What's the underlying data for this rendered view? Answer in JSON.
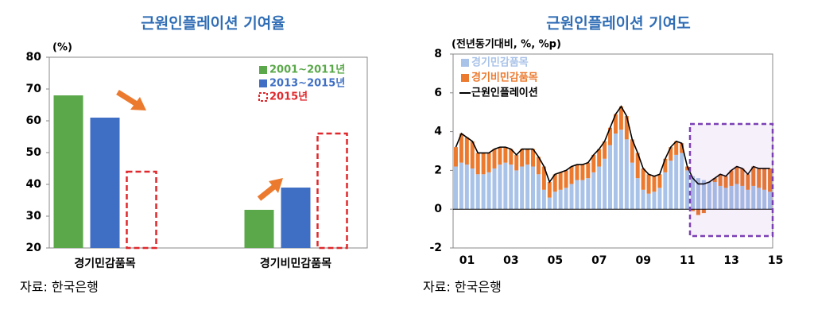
{
  "chart_data": [
    {
      "type": "bar",
      "title": "근원인플레이션 기여율",
      "y_label": "(%)",
      "categories": [
        "경기민감품목",
        "경기비민감품목"
      ],
      "series": [
        {
          "name": "2001~2011년",
          "color": "#5aa84a",
          "values": [
            68,
            32
          ]
        },
        {
          "name": "2013~2015년",
          "color": "#3f6fc4",
          "values": [
            61,
            39
          ]
        },
        {
          "name": "2015년",
          "color": "#e0282c",
          "dashed": true,
          "values": [
            44,
            56
          ]
        }
      ],
      "ylim": [
        20,
        80
      ],
      "yticks": [
        20,
        30,
        40,
        50,
        60,
        70,
        80
      ],
      "source": "자료: 한국은행"
    },
    {
      "type": "stacked-bar-line",
      "title": "근원인플레이션 기여도",
      "y_label": "(전년동기대비, %, %p)",
      "categories": [
        "01",
        null,
        null,
        null,
        null,
        null,
        null,
        null,
        "03",
        null,
        null,
        null,
        null,
        null,
        null,
        null,
        "05",
        null,
        null,
        null,
        null,
        null,
        null,
        null,
        "07",
        null,
        null,
        null,
        null,
        null,
        null,
        null,
        "09",
        null,
        null,
        null,
        null,
        null,
        null,
        null,
        "11",
        null,
        null,
        null,
        null,
        null,
        null,
        null,
        "13",
        null,
        null,
        null,
        null,
        null,
        null,
        null,
        "15",
        null
      ],
      "series": [
        {
          "name": "경기민감품목",
          "color": "#a9c2e8",
          "kind": "bar",
          "values": [
            2.2,
            2.4,
            2.3,
            2.1,
            1.8,
            1.8,
            1.9,
            2.1,
            2.3,
            2.4,
            2.3,
            2.0,
            2.2,
            2.3,
            2.2,
            1.8,
            1.0,
            0.6,
            0.9,
            1.0,
            1.1,
            1.3,
            1.5,
            1.5,
            1.6,
            1.9,
            2.2,
            2.6,
            3.3,
            3.9,
            4.1,
            3.6,
            2.4,
            1.6,
            1.0,
            0.8,
            0.9,
            1.1,
            1.9,
            2.5,
            2.8,
            2.9,
            2.0,
            1.7,
            1.6,
            1.5,
            1.4,
            1.4,
            1.2,
            1.1,
            1.2,
            1.3,
            1.2,
            1.0,
            1.2,
            1.1,
            1.0,
            0.9
          ]
        },
        {
          "name": "경기비민감품목",
          "color": "#ec7a2e",
          "kind": "bar",
          "values": [
            1.0,
            1.5,
            1.4,
            1.4,
            1.1,
            1.1,
            1.0,
            1.0,
            0.9,
            0.8,
            0.8,
            0.8,
            0.9,
            0.8,
            0.9,
            0.9,
            1.2,
            0.8,
            0.9,
            0.9,
            0.9,
            0.9,
            0.8,
            0.8,
            0.8,
            0.9,
            0.9,
            0.9,
            0.9,
            1.0,
            1.2,
            1.2,
            1.2,
            1.3,
            1.1,
            1.0,
            0.8,
            0.7,
            0.7,
            0.7,
            0.7,
            0.5,
            0.2,
            -0.1,
            -0.3,
            -0.2,
            0.0,
            0.2,
            0.6,
            0.6,
            0.8,
            0.9,
            0.9,
            0.8,
            1.0,
            1.0,
            1.1,
            1.2
          ]
        },
        {
          "name": "근원인플레이션",
          "color": "#000000",
          "kind": "line",
          "values": [
            3.2,
            3.9,
            3.7,
            3.5,
            2.9,
            2.9,
            2.9,
            3.1,
            3.2,
            3.2,
            3.1,
            2.8,
            3.1,
            3.1,
            3.1,
            2.7,
            2.2,
            1.4,
            1.8,
            1.9,
            2.0,
            2.2,
            2.3,
            2.3,
            2.4,
            2.8,
            3.1,
            3.5,
            4.2,
            4.9,
            5.3,
            4.8,
            3.6,
            2.9,
            2.1,
            1.8,
            1.7,
            1.8,
            2.6,
            3.2,
            3.5,
            3.4,
            2.2,
            1.6,
            1.3,
            1.3,
            1.4,
            1.6,
            1.8,
            1.7,
            2.0,
            2.2,
            2.1,
            1.8,
            2.2,
            2.1,
            2.1,
            2.1
          ]
        }
      ],
      "ylim": [
        -2,
        8
      ],
      "yticks": [
        -2,
        0,
        2,
        4,
        6,
        8
      ],
      "source": "자료: 한국은행"
    }
  ]
}
